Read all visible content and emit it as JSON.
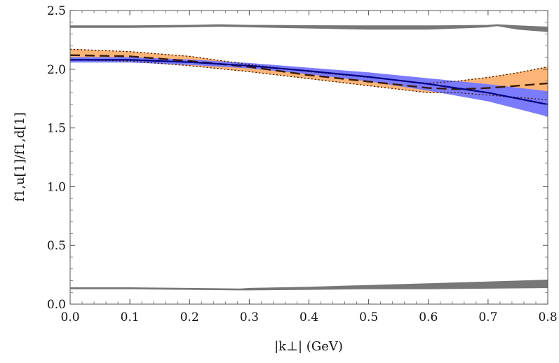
{
  "chart_data": {
    "type": "line",
    "title": "",
    "xlabel": "|k⊥|  (GeV)",
    "ylabel": "f1,u[1]/f1,d[1]",
    "xlim": [
      0,
      0.8
    ],
    "ylim": [
      0,
      2.5
    ],
    "xticks": [
      0.0,
      0.1,
      0.2,
      0.3,
      0.4,
      0.5,
      0.6,
      0.7,
      0.8
    ],
    "yticks": [
      0.0,
      0.5,
      1.0,
      1.5,
      2.0,
      2.5
    ],
    "xtick_labels": [
      "0.0",
      "0.1",
      "0.2",
      "0.3",
      "0.4",
      "0.5",
      "0.6",
      "0.7",
      "0.8"
    ],
    "ytick_labels": [
      "0.0",
      "0.5",
      "1.0",
      "1.5",
      "2.0",
      "2.5"
    ],
    "series": [
      {
        "name": "upper gray band",
        "kind": "band",
        "color": "#777777",
        "x": [
          0,
          0.1,
          0.2,
          0.25,
          0.3,
          0.4,
          0.5,
          0.6,
          0.7,
          0.715,
          0.75,
          0.8
        ],
        "lower": [
          2.355,
          2.355,
          2.36,
          2.365,
          2.36,
          2.35,
          2.34,
          2.34,
          2.36,
          2.37,
          2.34,
          2.32
        ],
        "upper": [
          2.37,
          2.37,
          2.375,
          2.38,
          2.375,
          2.372,
          2.37,
          2.37,
          2.375,
          2.38,
          2.37,
          2.36
        ]
      },
      {
        "name": "lower gray band",
        "kind": "band",
        "color": "#777777",
        "x": [
          0,
          0.1,
          0.2,
          0.285,
          0.3,
          0.4,
          0.5,
          0.6,
          0.7,
          0.8
        ],
        "lower": [
          0.13,
          0.13,
          0.125,
          0.12,
          0.12,
          0.125,
          0.13,
          0.13,
          0.135,
          0.14
        ],
        "upper": [
          0.14,
          0.14,
          0.135,
          0.13,
          0.135,
          0.145,
          0.16,
          0.175,
          0.19,
          0.205
        ]
      },
      {
        "name": "orange band",
        "kind": "band",
        "color": "#fdb577",
        "x": [
          0,
          0.1,
          0.2,
          0.3,
          0.4,
          0.5,
          0.6,
          0.65,
          0.7,
          0.75,
          0.8
        ],
        "lower": [
          2.08,
          2.07,
          2.03,
          1.98,
          1.92,
          1.86,
          1.8,
          1.8,
          1.78,
          1.76,
          1.74
        ],
        "upper": [
          2.17,
          2.15,
          2.11,
          2.04,
          1.98,
          1.93,
          1.88,
          1.9,
          1.93,
          1.97,
          2.02
        ]
      },
      {
        "name": "blue band",
        "kind": "band",
        "color": "#7b7bff",
        "x": [
          0,
          0.1,
          0.2,
          0.3,
          0.4,
          0.5,
          0.6,
          0.7,
          0.8
        ],
        "lower": [
          2.06,
          2.06,
          2.04,
          2.01,
          1.96,
          1.9,
          1.82,
          1.73,
          1.6
        ],
        "upper": [
          2.1,
          2.1,
          2.08,
          2.05,
          2.01,
          1.97,
          1.92,
          1.87,
          1.81
        ]
      },
      {
        "name": "orange band upper boundary",
        "kind": "line",
        "style": "dotted",
        "color": "#3a1a00",
        "x": [
          0,
          0.1,
          0.2,
          0.3,
          0.4,
          0.5,
          0.6,
          0.65,
          0.7,
          0.75,
          0.8
        ],
        "y": [
          2.17,
          2.15,
          2.11,
          2.04,
          1.98,
          1.93,
          1.88,
          1.9,
          1.93,
          1.97,
          2.02
        ]
      },
      {
        "name": "orange band lower boundary",
        "kind": "line",
        "style": "dotted",
        "color": "#3a1a00",
        "x": [
          0,
          0.1,
          0.2,
          0.3,
          0.4,
          0.5,
          0.6,
          0.65,
          0.7,
          0.75,
          0.8
        ],
        "y": [
          2.08,
          2.07,
          2.03,
          1.98,
          1.92,
          1.86,
          1.8,
          1.8,
          1.78,
          1.76,
          1.74
        ]
      },
      {
        "name": "dashed central curve",
        "kind": "line",
        "style": "dashed",
        "color": "#3a1a00",
        "x": [
          0,
          0.1,
          0.2,
          0.3,
          0.4,
          0.5,
          0.6,
          0.65,
          0.7,
          0.75,
          0.8
        ],
        "y": [
          2.12,
          2.11,
          2.07,
          2.02,
          1.95,
          1.895,
          1.84,
          1.83,
          1.84,
          1.86,
          1.88
        ]
      },
      {
        "name": "solid central curve",
        "kind": "line",
        "style": "solid",
        "color": "#000080",
        "x": [
          0,
          0.1,
          0.2,
          0.3,
          0.4,
          0.5,
          0.6,
          0.7,
          0.8
        ],
        "y": [
          2.08,
          2.08,
          2.06,
          2.03,
          1.985,
          1.935,
          1.875,
          1.8,
          1.7
        ]
      }
    ]
  }
}
